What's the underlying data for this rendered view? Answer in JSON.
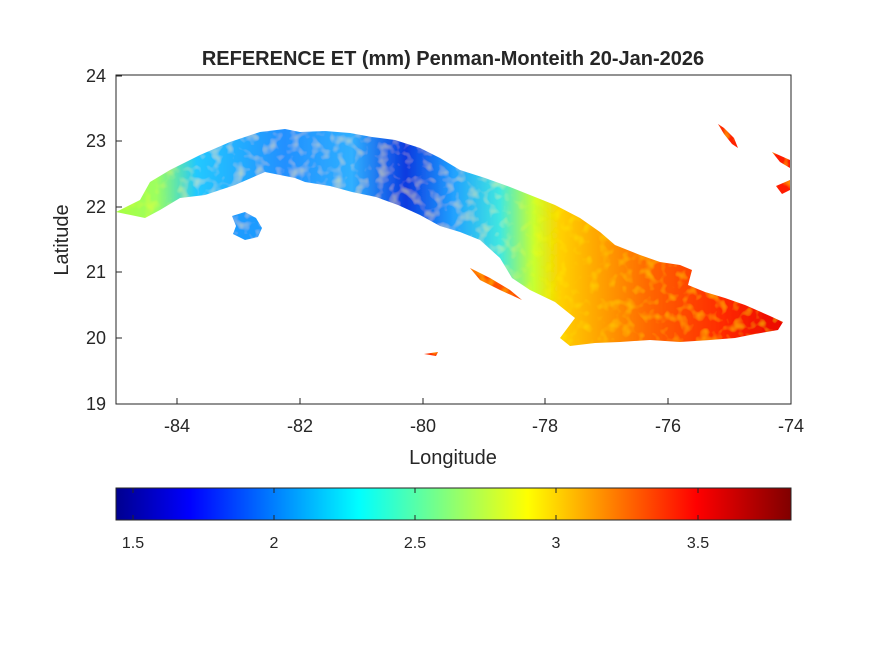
{
  "map": {
    "title": "REFERENCE ET (mm) Penman-Monteith 20-Jan-2026",
    "xlabel": "Longitude",
    "ylabel": "Latitude",
    "x_ticks": [
      "-84",
      "-82",
      "-80",
      "-78",
      "-76",
      "-74"
    ],
    "y_ticks": [
      "24",
      "23",
      "22",
      "21",
      "20",
      "19"
    ],
    "xlim": [
      -85,
      -74
    ],
    "ylim": [
      19,
      24
    ],
    "grid": false,
    "colormap": "jet",
    "region": "Cuba"
  },
  "colorbar": {
    "orientation": "horizontal",
    "range": [
      1.35,
      3.85
    ],
    "tick_labels": [
      "1.5",
      "2",
      "2.5",
      "3",
      "3.5"
    ],
    "colors": [
      "#00008f",
      "#0000ff",
      "#0080ff",
      "#00ffff",
      "#80ff80",
      "#ffff00",
      "#ff8000",
      "#ff0000",
      "#800000"
    ]
  }
}
